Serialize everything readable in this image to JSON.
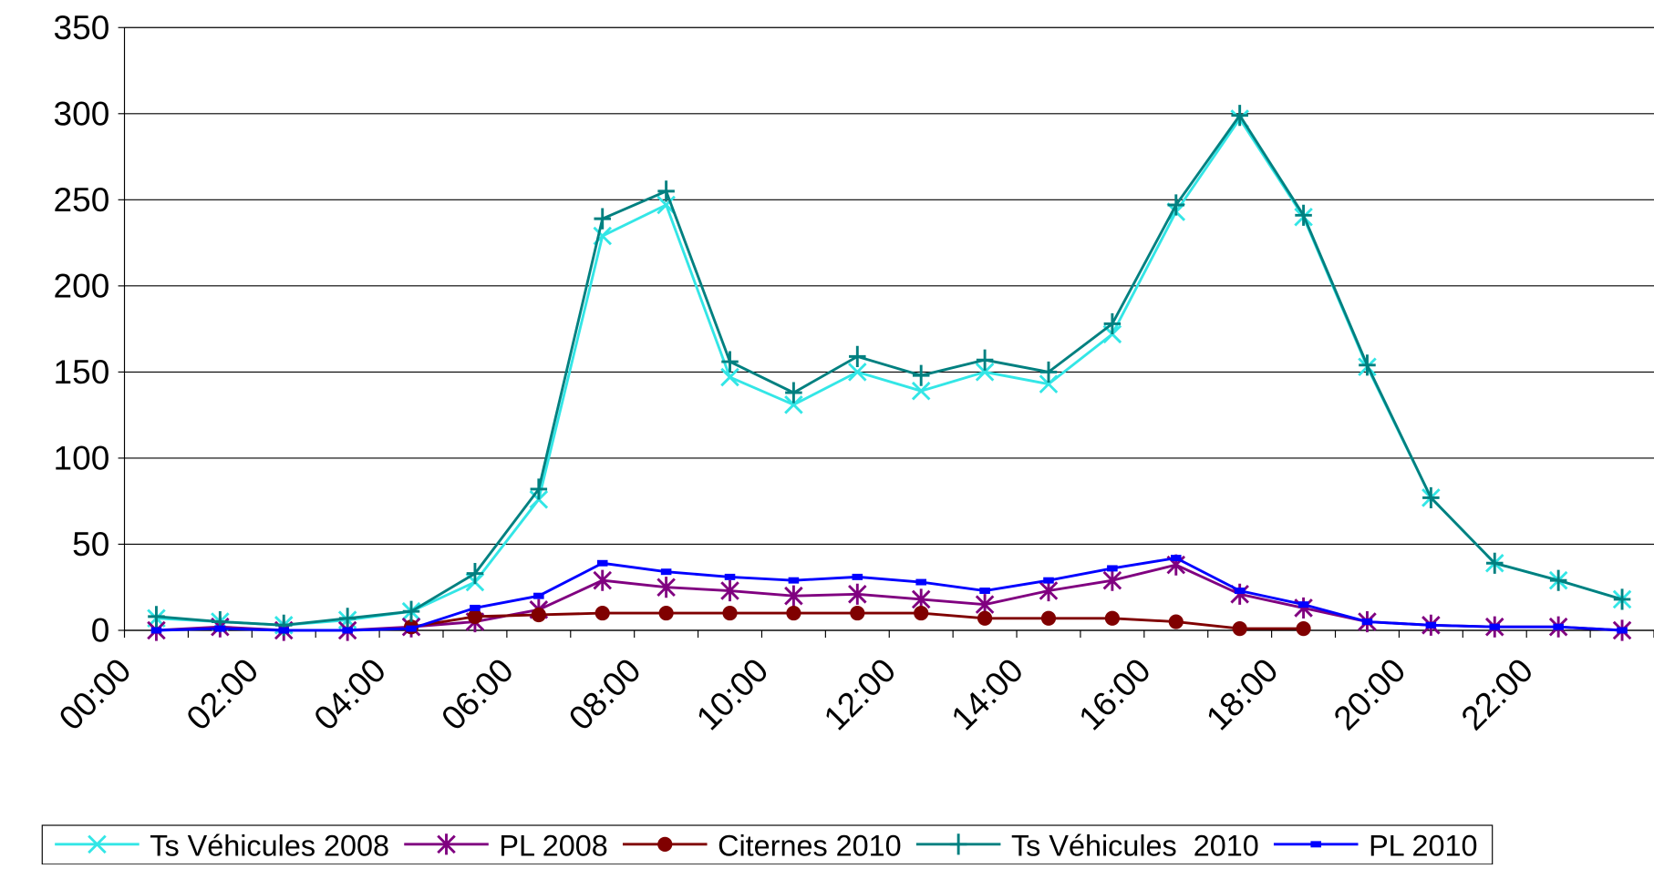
{
  "chart_data": {
    "type": "line",
    "categories": [
      "00:00",
      null,
      "02:00",
      null,
      "04:00",
      null,
      "06:00",
      null,
      "08:00",
      null,
      "10:00",
      null,
      "12:00",
      null,
      "14:00",
      null,
      "16:00",
      null,
      "18:00",
      null,
      "20:00",
      null,
      "22:00",
      null
    ],
    "series": [
      {
        "name": "Ts Véhicules 2008",
        "color": "#33e6e6",
        "marker": "x",
        "values": [
          7,
          5,
          3,
          6,
          11,
          28,
          76,
          229,
          247,
          147,
          131,
          150,
          139,
          150,
          143,
          172,
          243,
          297,
          240,
          153,
          77,
          39,
          29,
          18
        ]
      },
      {
        "name": "PL 2008",
        "color": "#800080",
        "marker": "star",
        "values": [
          0,
          2,
          0,
          0,
          2,
          5,
          12,
          29,
          25,
          23,
          20,
          21,
          18,
          15,
          23,
          29,
          38,
          21,
          13,
          5,
          3,
          2,
          2,
          0
        ]
      },
      {
        "name": "Citernes 2010",
        "color": "#800000",
        "marker": "circle",
        "values": [
          null,
          null,
          null,
          null,
          2,
          8,
          9,
          10,
          10,
          10,
          10,
          10,
          10,
          7,
          7,
          7,
          5,
          1,
          1,
          null,
          null,
          null,
          null,
          null
        ]
      },
      {
        "name": "Ts Véhicules  2010",
        "color": "#008080",
        "marker": "plus",
        "values": [
          8,
          5,
          3,
          7,
          11,
          33,
          82,
          239,
          255,
          156,
          138,
          159,
          148,
          157,
          150,
          178,
          247,
          299,
          241,
          154,
          77,
          39,
          29,
          18
        ]
      },
      {
        "name": "PL 2010",
        "color": "#0000ff",
        "marker": "dash",
        "values": [
          0,
          1,
          0,
          0,
          1,
          13,
          20,
          39,
          34,
          31,
          29,
          31,
          28,
          23,
          29,
          36,
          42,
          23,
          15,
          5,
          3,
          2,
          2,
          0
        ]
      }
    ],
    "ylim": [
      0,
      350
    ],
    "yticks": [
      0,
      50,
      100,
      150,
      200,
      250,
      300,
      350
    ],
    "grid": true,
    "legend": "bottom"
  }
}
